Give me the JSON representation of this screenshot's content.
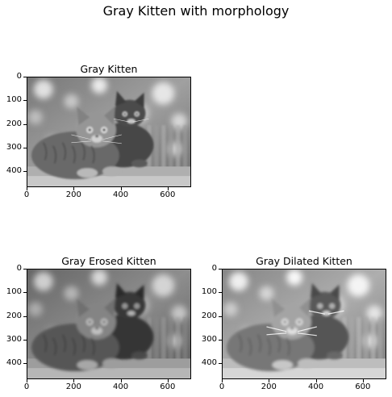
{
  "figure": {
    "suptitle": "Gray Kitten with morphology"
  },
  "panels": [
    {
      "title": "Gray Kitten",
      "variant": "original",
      "yticks": [
        "0",
        "100",
        "200",
        "300",
        "400"
      ],
      "xticks": [
        "0",
        "200",
        "400",
        "600"
      ]
    },
    {
      "title": "Gray Erosed Kitten",
      "variant": "eroded",
      "yticks": [
        "0",
        "100",
        "200",
        "300",
        "400"
      ],
      "xticks": [
        "0",
        "200",
        "400",
        "600"
      ]
    },
    {
      "title": "Gray Dilated Kitten",
      "variant": "dilated",
      "yticks": [
        "0",
        "100",
        "200",
        "300",
        "400"
      ],
      "xticks": [
        "0",
        "200",
        "400",
        "600"
      ]
    }
  ],
  "image_extent": {
    "width": 700,
    "height": 467
  }
}
